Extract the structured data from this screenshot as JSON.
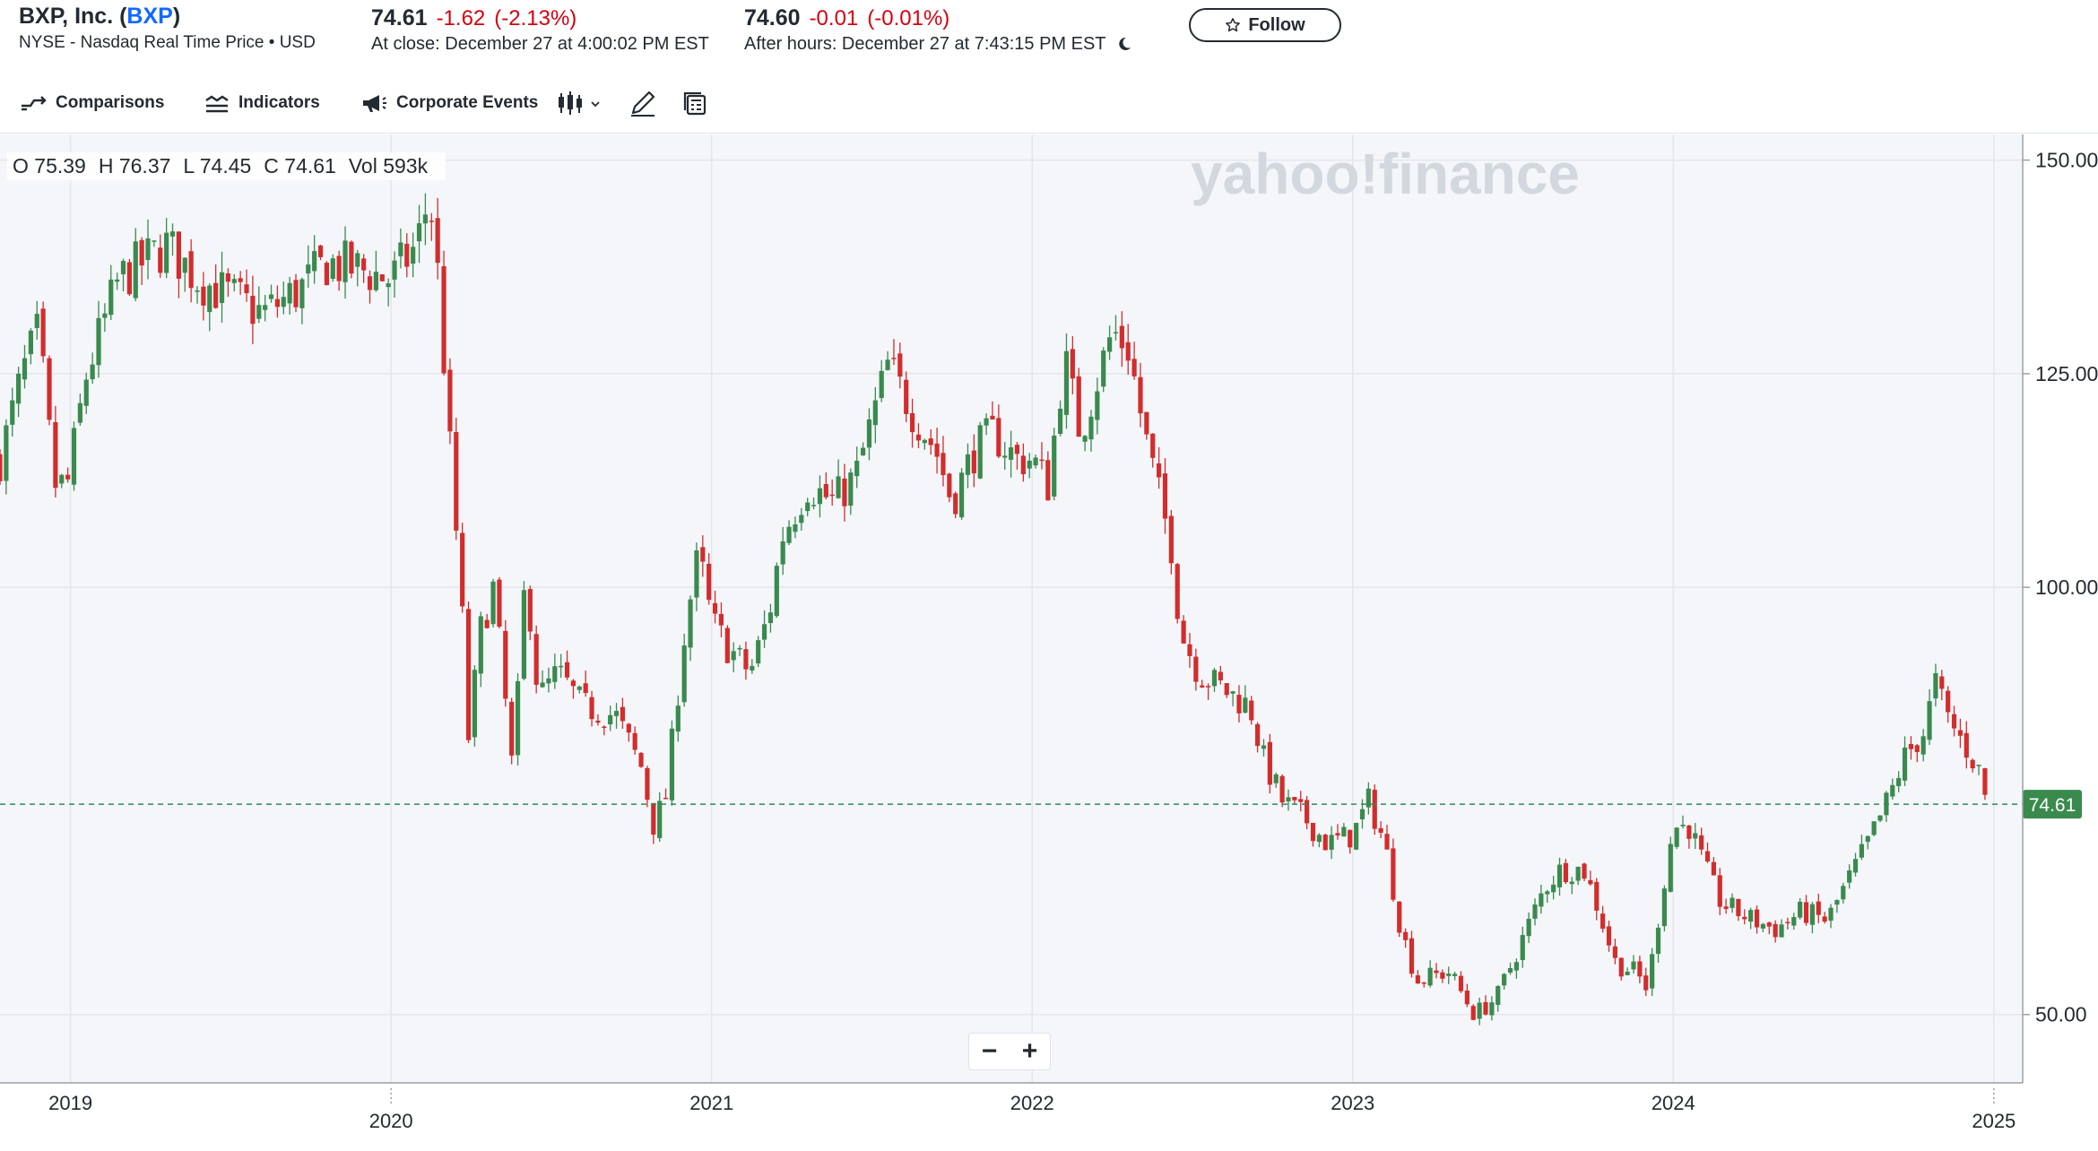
{
  "header": {
    "company": "BXP, Inc. (",
    "ticker": "BXP",
    "company_end": ")",
    "exchange": "NYSE - Nasdaq Real Time Price • USD",
    "close_price": "74.61",
    "close_change": "-1.62",
    "close_change_pct": "(-2.13%)",
    "close_time": "At close: December 27 at 4:00:02 PM EST",
    "after_price": "74.60",
    "after_change": "-0.01",
    "after_change_pct": "(-0.01%)",
    "after_time": "After hours: December 27 at 7:43:15 PM EST",
    "follow_label": "Follow"
  },
  "toolbar": {
    "comparisons": "Comparisons",
    "indicators": "Indicators",
    "corporate_events": "Corporate Events"
  },
  "ohlc": {
    "o": "O 75.39",
    "h": "H 76.37",
    "l": "L 74.45",
    "c": "C 74.61",
    "vol": "Vol 593k"
  },
  "watermark": "yahoo!finance",
  "current_price_label": "74.61",
  "colors": {
    "up": "#3a8a4e",
    "down": "#d22d2d",
    "grid": "#e3e6ea",
    "plot_bg": "#f4f6fa",
    "price_line": "#2e8b57"
  },
  "chart_data": {
    "type": "candlestick",
    "y_ticks": [
      "150.00",
      "125.00",
      "100.00",
      "50.00"
    ],
    "y_tick_values": [
      150,
      125,
      100,
      50
    ],
    "ylim": [
      42,
      153
    ],
    "x_labels": [
      {
        "label": "2019",
        "t": 2019.0,
        "row": 1
      },
      {
        "label": "2020",
        "t": 2020.0,
        "row": 2
      },
      {
        "label": "2021",
        "t": 2021.0,
        "row": 1
      },
      {
        "label": "2022",
        "t": 2022.0,
        "row": 1
      },
      {
        "label": "2023",
        "t": 2023.0,
        "row": 1
      },
      {
        "label": "2024",
        "t": 2024.0,
        "row": 1
      },
      {
        "label": "2025",
        "t": 2025.0,
        "row": 2
      }
    ],
    "xlim": [
      2018.78,
      2025.09
    ],
    "last_price": 74.61,
    "price_path": [
      [
        2018.78,
        115
      ],
      [
        2018.85,
        125
      ],
      [
        2018.9,
        130
      ],
      [
        2018.95,
        112
      ],
      [
        2018.99,
        112
      ],
      [
        2019.05,
        125
      ],
      [
        2019.15,
        136
      ],
      [
        2019.3,
        140
      ],
      [
        2019.4,
        136
      ],
      [
        2019.5,
        134
      ],
      [
        2019.6,
        132
      ],
      [
        2019.72,
        135
      ],
      [
        2019.8,
        138
      ],
      [
        2019.92,
        137
      ],
      [
        2020.0,
        136
      ],
      [
        2020.08,
        140
      ],
      [
        2020.12,
        146
      ],
      [
        2020.15,
        135
      ],
      [
        2020.18,
        118
      ],
      [
        2020.22,
        98
      ],
      [
        2020.24,
        82
      ],
      [
        2020.28,
        95
      ],
      [
        2020.32,
        100
      ],
      [
        2020.38,
        78
      ],
      [
        2020.42,
        102
      ],
      [
        2020.46,
        87
      ],
      [
        2020.52,
        90
      ],
      [
        2020.6,
        86
      ],
      [
        2020.7,
        85
      ],
      [
        2020.78,
        79
      ],
      [
        2020.82,
        72
      ],
      [
        2020.86,
        76
      ],
      [
        2020.88,
        83
      ],
      [
        2020.92,
        96
      ],
      [
        2020.96,
        104
      ],
      [
        2021.0,
        96
      ],
      [
        2021.05,
        93
      ],
      [
        2021.12,
        90
      ],
      [
        2021.18,
        97
      ],
      [
        2021.22,
        106
      ],
      [
        2021.3,
        112
      ],
      [
        2021.38,
        110
      ],
      [
        2021.45,
        113
      ],
      [
        2021.55,
        126
      ],
      [
        2021.62,
        121
      ],
      [
        2021.7,
        116
      ],
      [
        2021.75,
        110
      ],
      [
        2021.82,
        116
      ],
      [
        2021.88,
        118
      ],
      [
        2021.95,
        115
      ],
      [
        2022.0,
        115
      ],
      [
        2022.05,
        112
      ],
      [
        2022.1,
        127
      ],
      [
        2022.15,
        118
      ],
      [
        2022.2,
        124
      ],
      [
        2022.25,
        130
      ],
      [
        2022.3,
        128
      ],
      [
        2022.35,
        118
      ],
      [
        2022.4,
        110
      ],
      [
        2022.44,
        104
      ],
      [
        2022.46,
        95
      ],
      [
        2022.52,
        90
      ],
      [
        2022.6,
        88
      ],
      [
        2022.68,
        86
      ],
      [
        2022.72,
        80
      ],
      [
        2022.78,
        75
      ],
      [
        2022.85,
        73
      ],
      [
        2022.92,
        70
      ],
      [
        2023.0,
        71
      ],
      [
        2023.05,
        75
      ],
      [
        2023.1,
        70
      ],
      [
        2023.15,
        60
      ],
      [
        2023.2,
        54
      ],
      [
        2023.3,
        55
      ],
      [
        2023.38,
        50
      ],
      [
        2023.45,
        52
      ],
      [
        2023.52,
        58
      ],
      [
        2023.6,
        65
      ],
      [
        2023.65,
        67
      ],
      [
        2023.72,
        67
      ],
      [
        2023.76,
        63
      ],
      [
        2023.82,
        56
      ],
      [
        2023.88,
        55
      ],
      [
        2023.92,
        53
      ],
      [
        2023.96,
        63
      ],
      [
        2024.0,
        72
      ],
      [
        2024.05,
        72
      ],
      [
        2024.1,
        67
      ],
      [
        2024.15,
        63
      ],
      [
        2024.25,
        61
      ],
      [
        2024.32,
        60
      ],
      [
        2024.4,
        62
      ],
      [
        2024.48,
        61
      ],
      [
        2024.55,
        66
      ],
      [
        2024.62,
        71
      ],
      [
        2024.68,
        76
      ],
      [
        2024.72,
        80
      ],
      [
        2024.78,
        83
      ],
      [
        2024.82,
        89
      ],
      [
        2024.85,
        85
      ],
      [
        2024.9,
        82
      ],
      [
        2024.95,
        79
      ],
      [
        2024.98,
        74.6
      ]
    ]
  }
}
